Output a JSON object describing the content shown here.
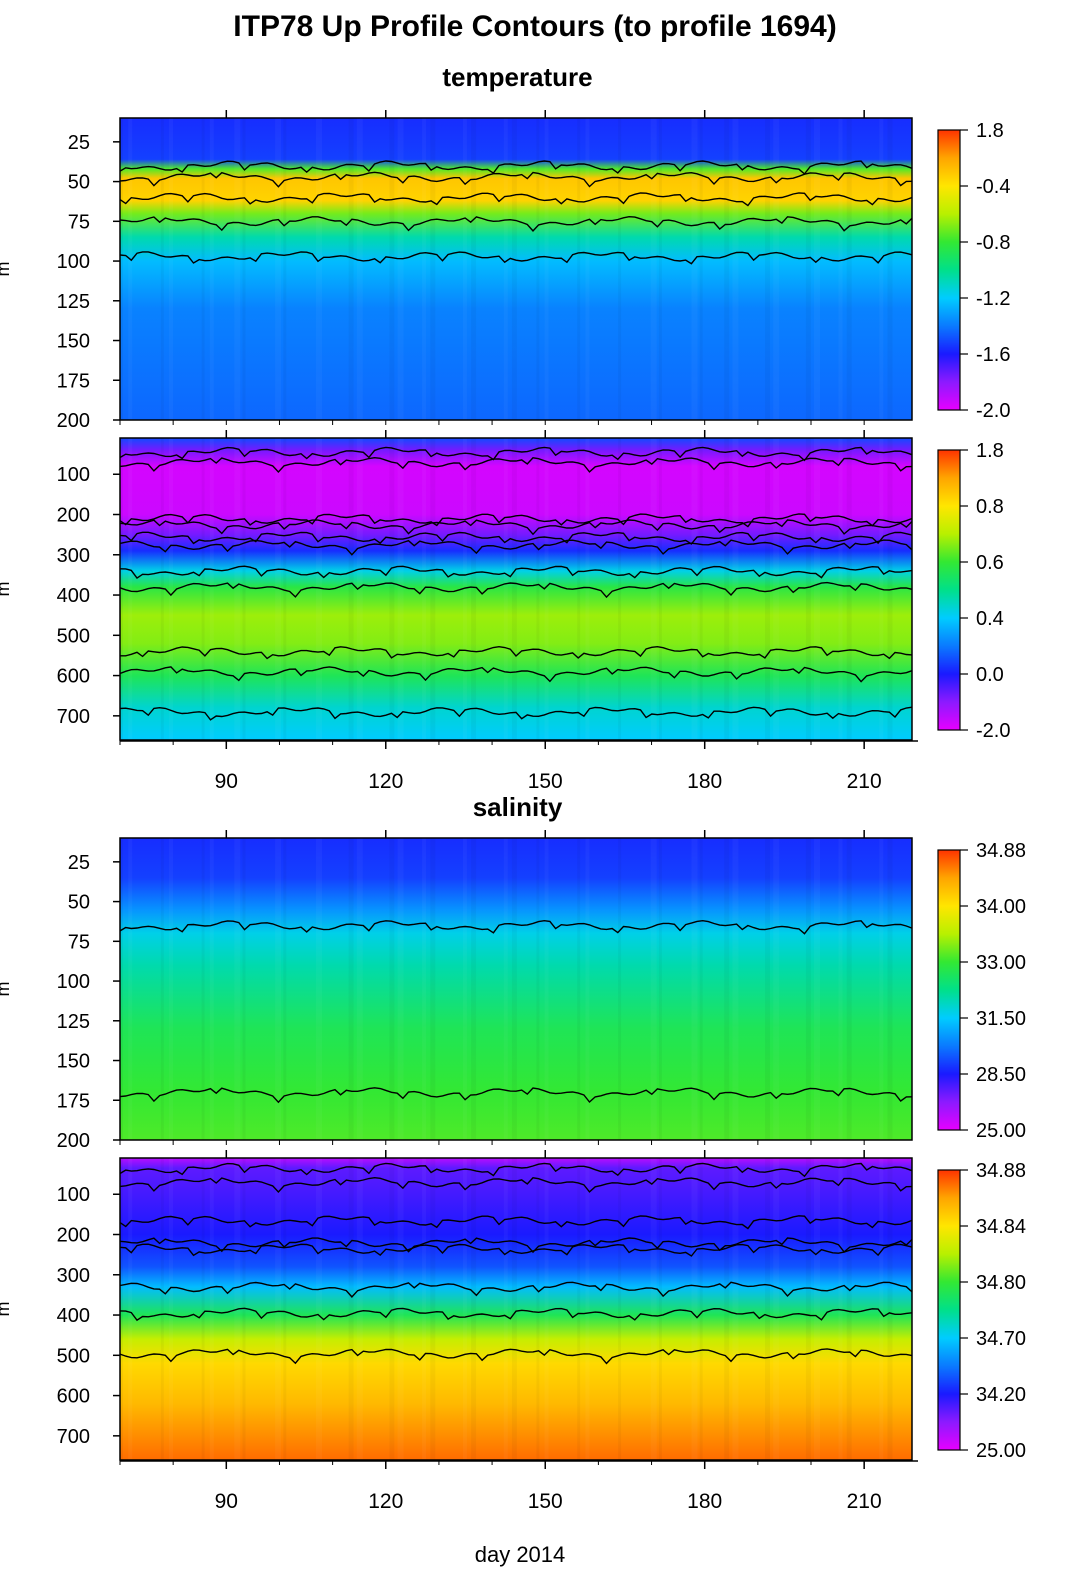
{
  "title": "ITP78 Up Profile Contours (to profile 1694)",
  "section_titles": [
    "temperature",
    "salinity"
  ],
  "xlabel": "day 2014",
  "colors": {
    "colormap": [
      "#e600ff",
      "#8c1aff",
      "#1a1aff",
      "#0a7aff",
      "#00ccff",
      "#00e08a",
      "#33e833",
      "#b8f000",
      "#ffe600",
      "#ffa500",
      "#ff3300"
    ],
    "contour": "#000000"
  },
  "chart_data": [
    {
      "type": "heatmap",
      "name": "temperature-upper",
      "ylabel": "m",
      "x_range": [
        70,
        219
      ],
      "y_range": [
        10,
        200
      ],
      "yticks": [
        25,
        50,
        75,
        100,
        125,
        150,
        175,
        200
      ],
      "ytick_labels": [
        "25",
        "50",
        "75",
        "100",
        "125",
        "150",
        "175",
        "200"
      ],
      "colorbar_labels": [
        "1.8",
        "-0.4",
        "-0.8",
        "-1.2",
        "-1.6",
        "-2.0"
      ],
      "layers": [
        {
          "y": 10,
          "c": 0.22
        },
        {
          "y": 36,
          "c": 0.24
        },
        {
          "y": 42,
          "c": 0.62
        },
        {
          "y": 48,
          "c": 0.85
        },
        {
          "y": 62,
          "c": 0.83
        },
        {
          "y": 70,
          "c": 0.65
        },
        {
          "y": 85,
          "c": 0.47
        },
        {
          "y": 100,
          "c": 0.38
        },
        {
          "y": 130,
          "c": 0.31
        },
        {
          "y": 200,
          "c": 0.28
        }
      ],
      "contours": [
        40,
        47,
        60,
        75,
        97
      ]
    },
    {
      "type": "heatmap",
      "name": "temperature-lower",
      "ylabel": "m",
      "x_range": [
        70,
        219
      ],
      "y_range": [
        10,
        760
      ],
      "yticks": [
        100,
        200,
        300,
        400,
        500,
        600,
        700
      ],
      "ytick_labels": [
        "100",
        "200",
        "300",
        "400",
        "500",
        "600",
        "700"
      ],
      "colorbar_labels": [
        "1.8",
        "0.8",
        "0.6",
        "0.4",
        "0.0",
        "-2.0"
      ],
      "layers": [
        {
          "y": 10,
          "c": 0.25
        },
        {
          "y": 40,
          "c": 0.12
        },
        {
          "y": 80,
          "c": 0.02
        },
        {
          "y": 200,
          "c": 0.03
        },
        {
          "y": 250,
          "c": 0.12
        },
        {
          "y": 290,
          "c": 0.22
        },
        {
          "y": 340,
          "c": 0.42
        },
        {
          "y": 380,
          "c": 0.58
        },
        {
          "y": 450,
          "c": 0.68
        },
        {
          "y": 520,
          "c": 0.66
        },
        {
          "y": 600,
          "c": 0.56
        },
        {
          "y": 680,
          "c": 0.44
        },
        {
          "y": 760,
          "c": 0.4
        }
      ],
      "contours": [
        45,
        70,
        210,
        225,
        255,
        275,
        340,
        380,
        540,
        590,
        690
      ]
    },
    {
      "type": "heatmap",
      "name": "salinity-upper",
      "ylabel": "m",
      "x_range": [
        70,
        219
      ],
      "y_range": [
        10,
        200
      ],
      "yticks": [
        25,
        50,
        75,
        100,
        125,
        150,
        175,
        200
      ],
      "ytick_labels": [
        "25",
        "50",
        "75",
        "100",
        "125",
        "150",
        "175",
        "200"
      ],
      "colorbar_labels": [
        "34.88",
        "34.00",
        "33.00",
        "31.50",
        "28.50",
        "25.00"
      ],
      "layers": [
        {
          "y": 10,
          "c": 0.22
        },
        {
          "y": 35,
          "c": 0.24
        },
        {
          "y": 55,
          "c": 0.33
        },
        {
          "y": 70,
          "c": 0.42
        },
        {
          "y": 90,
          "c": 0.47
        },
        {
          "y": 130,
          "c": 0.56
        },
        {
          "y": 170,
          "c": 0.6
        },
        {
          "y": 200,
          "c": 0.62
        }
      ],
      "contours": [
        65,
        170
      ]
    },
    {
      "type": "heatmap",
      "name": "salinity-lower",
      "ylabel": "m",
      "x_range": [
        70,
        219
      ],
      "y_range": [
        10,
        760
      ],
      "yticks": [
        100,
        200,
        300,
        400,
        500,
        600,
        700
      ],
      "ytick_labels": [
        "100",
        "200",
        "300",
        "400",
        "500",
        "600",
        "700"
      ],
      "colorbar_labels": [
        "34.88",
        "34.84",
        "34.80",
        "34.70",
        "34.20",
        "25.00"
      ],
      "layers": [
        {
          "y": 10,
          "c": 0.05
        },
        {
          "y": 35,
          "c": 0.14
        },
        {
          "y": 200,
          "c": 0.2
        },
        {
          "y": 280,
          "c": 0.26
        },
        {
          "y": 330,
          "c": 0.38
        },
        {
          "y": 400,
          "c": 0.56
        },
        {
          "y": 460,
          "c": 0.72
        },
        {
          "y": 520,
          "c": 0.82
        },
        {
          "y": 620,
          "c": 0.87
        },
        {
          "y": 760,
          "c": 0.95
        }
      ],
      "contours": [
        35,
        70,
        165,
        220,
        235,
        330,
        395,
        495
      ]
    }
  ],
  "xticks": [
    90,
    120,
    150,
    180,
    210
  ],
  "xtick_labels": [
    "90",
    "120",
    "150",
    "180",
    "210"
  ]
}
